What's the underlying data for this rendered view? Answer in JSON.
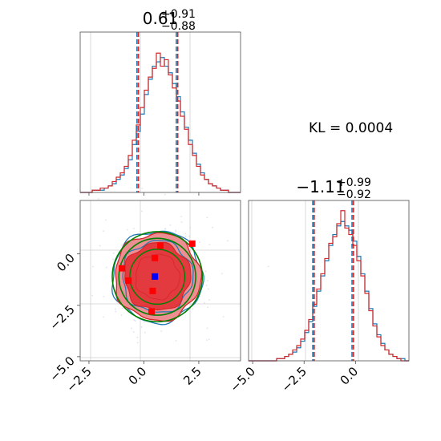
{
  "chart_data": {
    "type": "corner",
    "kl_label": "KL = 0.0004",
    "colors": {
      "blue": "#1f77b4",
      "red": "#d62728",
      "green": "#008000",
      "fill": "#ed8f92",
      "fill_dark": "#e23a3f",
      "truth_blue": "#0000ff",
      "truth_red": "#ff0000"
    },
    "params": [
      {
        "median": "0.61",
        "plus": "+0.91",
        "minus": "−0.88",
        "median_value": 0.61,
        "quantiles": [
          -0.27,
          0.61,
          1.52
        ],
        "range": [
          -2.9,
          4.4
        ]
      },
      {
        "median": "−1.11",
        "plus": "+0.99",
        "minus": "−0.92",
        "median_value": -1.11,
        "quantiles": [
          -2.03,
          -1.11,
          -0.12
        ],
        "range": [
          -5.2,
          2.6
        ]
      }
    ],
    "ticks_x0": {
      "values": [
        -2.5,
        0.0,
        2.5
      ],
      "labels": [
        "−2.5",
        "0.0",
        "2.5"
      ]
    },
    "ticks_x1": {
      "values": [
        -5.0,
        -2.5,
        0.0
      ],
      "labels": [
        "−5.0",
        "−2.5",
        "0.0"
      ]
    },
    "ticks_y1": {
      "values": [
        -5.0,
        -2.5,
        0.0
      ],
      "labels": [
        "−5.0",
        "−2.5",
        "0.0"
      ]
    },
    "points_red": [
      [
        -1.0,
        -0.7
      ],
      [
        -0.7,
        -1.3
      ],
      [
        0.75,
        0.4
      ],
      [
        0.5,
        -0.2
      ],
      [
        0.4,
        -1.8
      ],
      [
        0.35,
        -2.8
      ],
      [
        2.2,
        0.5
      ]
    ],
    "point_blue": [
      0.5,
      -1.1
    ],
    "hist_bins": 40,
    "hist0_blue": [
      0,
      0,
      0,
      1,
      1,
      1,
      2,
      3,
      4,
      6,
      8,
      11,
      15,
      22,
      28,
      36,
      45,
      52,
      58,
      60,
      62,
      58,
      55,
      50,
      44,
      37,
      30,
      24,
      18,
      13,
      9,
      6,
      4,
      3,
      2,
      1,
      1,
      0,
      0,
      0
    ],
    "hist0_red": [
      0,
      0,
      0,
      1,
      1,
      2,
      2,
      3,
      5,
      7,
      9,
      12,
      17,
      24,
      31,
      39,
      47,
      53,
      57,
      64,
      58,
      61,
      54,
      48,
      42,
      35,
      29,
      22,
      17,
      12,
      8,
      6,
      4,
      3,
      2,
      1,
      1,
      0,
      0,
      0
    ],
    "hist1_blue": [
      0,
      0,
      0,
      0,
      0,
      0,
      0,
      1,
      1,
      2,
      3,
      4,
      6,
      9,
      13,
      18,
      25,
      32,
      39,
      46,
      53,
      58,
      62,
      64,
      62,
      60,
      55,
      48,
      40,
      32,
      24,
      17,
      12,
      8,
      5,
      3,
      2,
      1,
      1,
      0
    ],
    "hist1_red": [
      0,
      0,
      0,
      0,
      0,
      0,
      0,
      1,
      1,
      2,
      3,
      5,
      7,
      10,
      14,
      19,
      26,
      33,
      40,
      47,
      54,
      57,
      63,
      69,
      61,
      58,
      53,
      46,
      39,
      31,
      23,
      16,
      11,
      7,
      5,
      3,
      2,
      1,
      0,
      0
    ]
  }
}
